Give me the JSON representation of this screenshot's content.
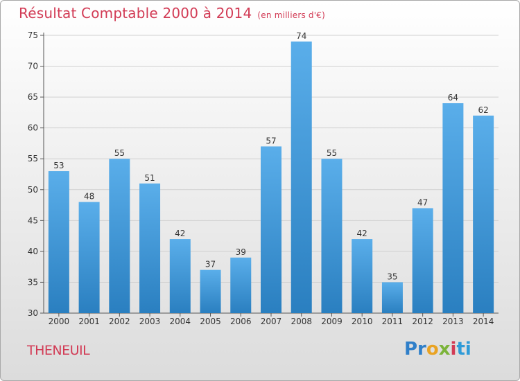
{
  "title": "Résultat Comptable 2000 à 2014",
  "unit": "(en milliers d'€)",
  "commune": "THENEUIL",
  "logo": {
    "p1": "Pr",
    "p2": "o",
    "p3": "x",
    "p4": "i",
    "p5": "ti"
  },
  "colors": {
    "bar_top": "#5aaeea",
    "bar_bottom": "#2a7fc0",
    "title": "#d23b55"
  },
  "chart_data": {
    "type": "bar",
    "categories": [
      "2000",
      "2001",
      "2002",
      "2003",
      "2004",
      "2005",
      "2006",
      "2007",
      "2008",
      "2009",
      "2010",
      "2011",
      "2012",
      "2013",
      "2014"
    ],
    "values": [
      53,
      48,
      55,
      51,
      42,
      37,
      39,
      57,
      74,
      55,
      42,
      35,
      47,
      64,
      62
    ],
    "ylim": [
      30,
      75
    ],
    "yticks": [
      30,
      35,
      40,
      45,
      50,
      55,
      60,
      65,
      70,
      75
    ],
    "xlabel": "",
    "ylabel": "",
    "grid": true
  }
}
